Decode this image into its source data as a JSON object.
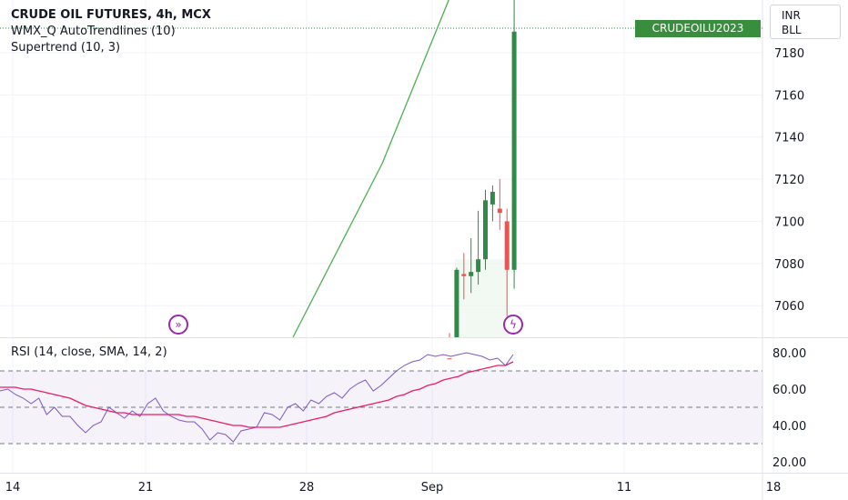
{
  "legend": {
    "symbol": "CRUDE OIL FUTURES, 4h, MCX",
    "indicator1": "WMX_Q AutoTrendlines (10)",
    "indicator2": "Supertrend (10, 3)"
  },
  "rsi_legend": "RSI (14, close, SMA, 14, 2)",
  "currency": {
    "line1": "INR",
    "line2": "BLL"
  },
  "symbol_tag": "CRUDEOILU2023",
  "icons": {
    "left": "fast-forward-icon",
    "right": "lightning-icon"
  },
  "colors": {
    "up": "#2e8b47",
    "down": "#ef5350",
    "trendline": "#4caf50",
    "rsi": "#7e57c2",
    "rsi_ma": "#e91e63",
    "rsi_band": "#7e57c2"
  },
  "chart_data": [
    {
      "type": "candlestick",
      "ylim": [
        7045,
        7205
      ],
      "y_ticks": [
        "7180",
        "7160",
        "7140",
        "7120",
        "7100",
        "7080",
        "7060"
      ],
      "x_ticks": [
        "14",
        "21",
        "28",
        "Sep",
        "11",
        "18"
      ],
      "candles": [
        {
          "o": 7035,
          "h": 7047,
          "l": 7020,
          "c": 7030
        },
        {
          "o": 7030,
          "h": 7078,
          "l": 7025,
          "c": 7077
        },
        {
          "o": 7075,
          "h": 7085,
          "l": 7063,
          "c": 7074
        },
        {
          "o": 7074,
          "h": 7092,
          "l": 7066,
          "c": 7076
        },
        {
          "o": 7076,
          "h": 7105,
          "l": 7070,
          "c": 7082
        },
        {
          "o": 7082,
          "h": 7115,
          "l": 7077,
          "c": 7110
        },
        {
          "o": 7108,
          "h": 7117,
          "l": 7100,
          "c": 7114
        },
        {
          "o": 7106,
          "h": 7120,
          "l": 7096,
          "c": 7104
        },
        {
          "o": 7100,
          "h": 7106,
          "l": 7055,
          "c": 7077
        },
        {
          "o": 7077,
          "h": 7250,
          "l": 7068,
          "c": 7190
        }
      ]
    },
    {
      "type": "line",
      "title": "RSI (14, close, SMA, 14, 2)",
      "ylim": [
        14,
        88
      ],
      "y_ticks": [
        "80.00",
        "60.00",
        "40.00",
        "20.00"
      ],
      "bands": [
        30,
        50,
        70
      ],
      "series": [
        {
          "name": "RSI",
          "values": [
            59,
            60,
            57,
            55,
            52,
            55,
            46,
            50,
            45,
            45,
            40,
            36,
            40,
            42,
            50,
            47,
            44,
            48,
            45,
            52,
            55,
            48,
            45,
            43,
            42,
            42,
            38,
            32,
            36,
            35,
            31,
            37,
            38,
            39,
            47,
            46,
            43,
            50,
            52,
            48,
            54,
            52,
            56,
            58,
            55,
            60,
            63,
            65,
            59,
            62,
            66,
            70,
            73,
            75,
            76,
            79,
            78,
            79,
            78,
            79,
            80,
            79,
            78,
            76,
            77,
            73,
            79
          ]
        },
        {
          "name": "MA",
          "values": [
            61,
            61,
            61,
            60,
            60,
            59,
            58,
            57,
            56,
            55,
            53,
            51,
            50,
            49,
            48,
            47,
            47,
            46,
            46,
            46,
            46,
            46,
            46,
            46,
            45,
            45,
            44,
            43,
            42,
            41,
            40,
            40,
            39,
            39,
            39,
            39,
            39,
            40,
            41,
            42,
            43,
            44,
            45,
            47,
            48,
            49,
            50,
            51,
            52,
            53,
            54,
            56,
            57,
            59,
            60,
            62,
            63,
            65,
            66,
            67,
            69,
            70,
            71,
            72,
            73,
            73,
            75
          ]
        }
      ]
    }
  ]
}
